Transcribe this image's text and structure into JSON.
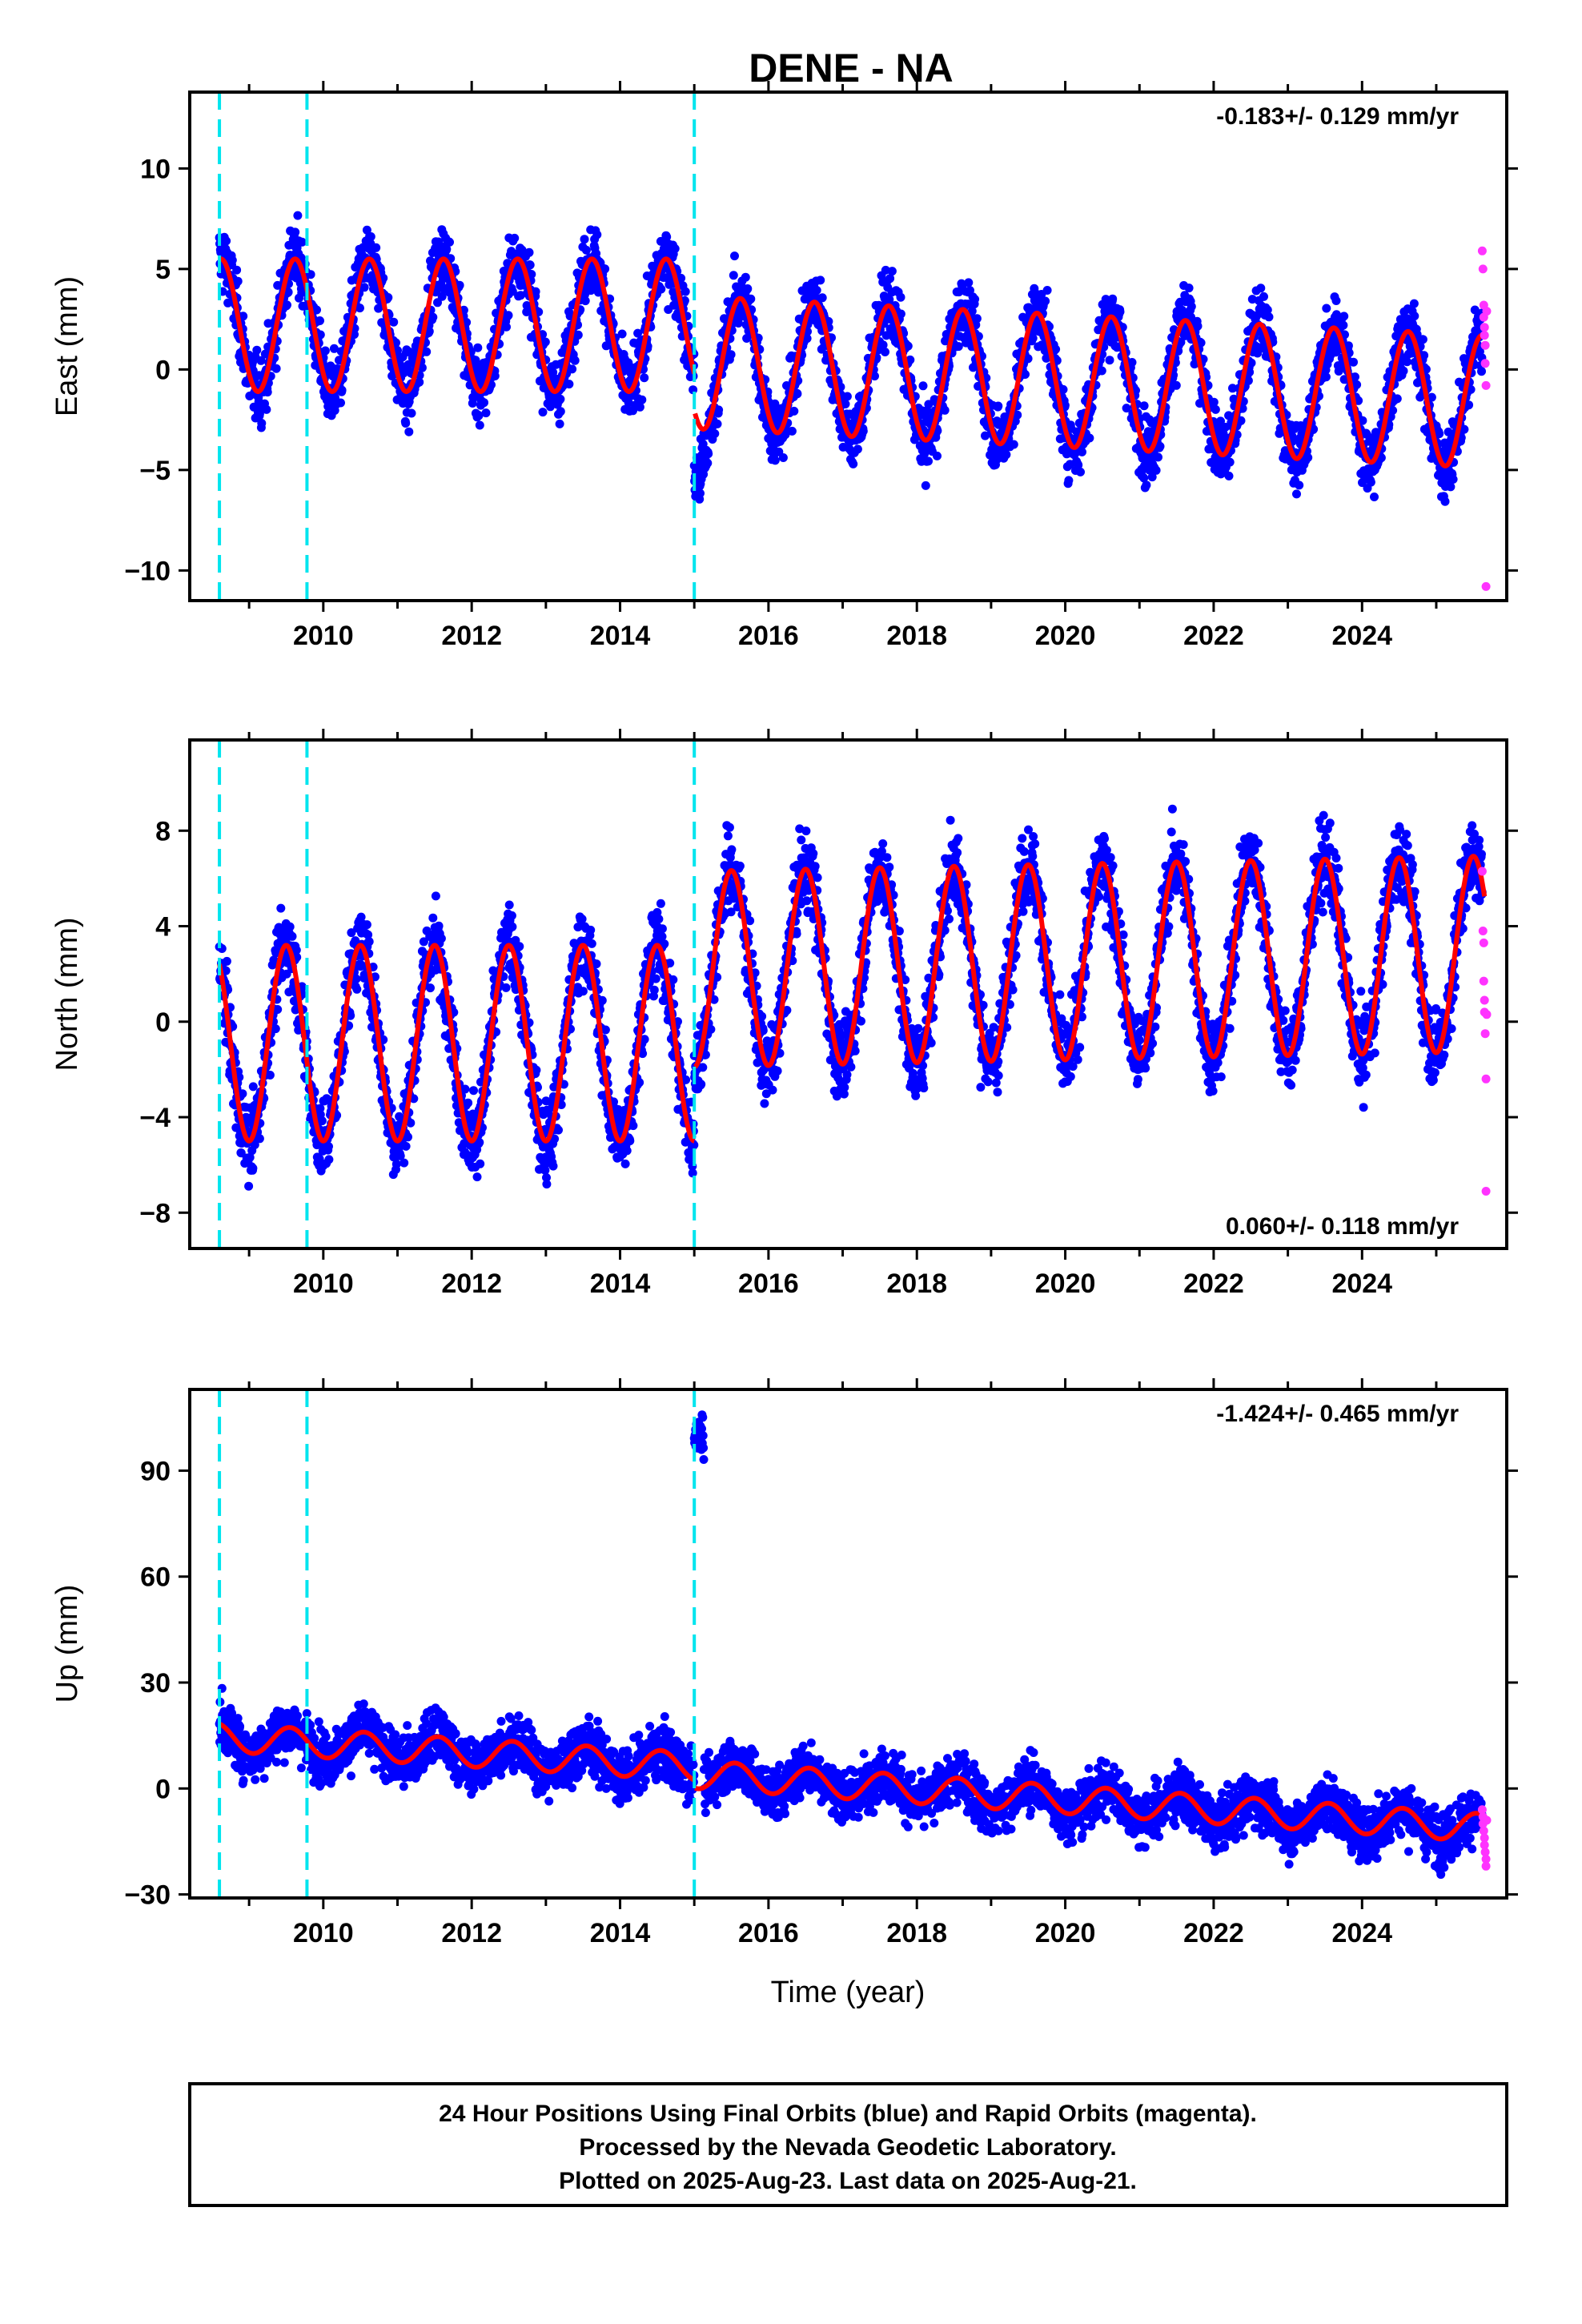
{
  "title": "DENE - NA",
  "xlabel": "Time (year)",
  "footer": [
    "24 Hour Positions Using Final Orbits (blue) and Rapid Orbits (magenta).",
    "Processed by the Nevada Geodetic Laboratory.",
    "Plotted on 2025-Aug-23. Last data on 2025-Aug-21."
  ],
  "colors": {
    "final_orbits": "#0000ff",
    "rapid_orbits": "#ff33ff",
    "model_fit": "#ff0000",
    "step_lines": "#00e5ee",
    "frame": "#000000"
  },
  "chart_data": [
    {
      "type": "scatter",
      "component": "east",
      "ylabel": "East (mm)",
      "rate_text": "-0.183+/- 0.129 mm/yr",
      "rate_position": "top-right",
      "xlim": [
        2008.2,
        2025.95
      ],
      "ylim": [
        -11.5,
        13.8
      ],
      "x_ticks": [
        2010,
        2012,
        2014,
        2016,
        2018,
        2020,
        2022,
        2024
      ],
      "y_ticks": [
        -10,
        -5,
        0,
        5,
        10
      ],
      "step_epochs": [
        2008.6,
        2009.78,
        2015.0
      ],
      "model_fit": {
        "segments": [
          {
            "t_start": 2008.6,
            "t_end": 2015.0,
            "offset": 2.2,
            "rate": 0.0,
            "amplitude": 3.3
          },
          {
            "t_start": 2015.0,
            "t_end": 2025.65,
            "offset": 0.35,
            "rate": -0.183,
            "amplitude": 3.3
          }
        ],
        "phase_year_fraction": 0.62
      },
      "rapid_points": {
        "x": [
          2025.62,
          2025.63,
          2025.64,
          2025.64,
          2025.65,
          2025.65,
          2025.66,
          2025.66,
          2025.67,
          2025.67,
          2025.68
        ],
        "y": [
          5.9,
          5.0,
          3.2,
          2.6,
          2.1,
          1.7,
          1.2,
          0.3,
          -0.8,
          -10.8,
          2.9
        ]
      }
    },
    {
      "type": "scatter",
      "component": "north",
      "ylabel": "North (mm)",
      "rate_text": "0.060+/- 0.118 mm/yr",
      "rate_position": "bottom-right",
      "xlim": [
        2008.2,
        2025.95
      ],
      "ylim": [
        -9.5,
        11.8
      ],
      "x_ticks": [
        2010,
        2012,
        2014,
        2016,
        2018,
        2020,
        2022,
        2024
      ],
      "y_ticks": [
        -8,
        -4,
        0,
        4,
        8
      ],
      "step_epochs": [
        2008.6,
        2009.78,
        2015.0
      ],
      "model_fit": {
        "segments": [
          {
            "t_start": 2008.6,
            "t_end": 2015.0,
            "offset": -0.9,
            "rate": 0.0,
            "amplitude": 4.1
          },
          {
            "t_start": 2015.0,
            "t_end": 2025.65,
            "offset": 2.2,
            "rate": 0.06,
            "amplitude": 4.1
          }
        ],
        "phase_year_fraction": 0.5
      },
      "rapid_points": {
        "x": [
          2025.62,
          2025.63,
          2025.64,
          2025.64,
          2025.65,
          2025.65,
          2025.66,
          2025.67,
          2025.67,
          2025.68
        ],
        "y": [
          6.3,
          3.8,
          3.3,
          1.7,
          0.9,
          0.4,
          -0.5,
          -2.4,
          -7.1,
          0.3
        ]
      }
    },
    {
      "type": "scatter",
      "component": "up",
      "ylabel": "Up (mm)",
      "rate_text": "-1.424+/- 0.465 mm/yr",
      "rate_position": "top-right",
      "xlim": [
        2008.2,
        2025.95
      ],
      "ylim": [
        -31,
        113
      ],
      "x_ticks": [
        2010,
        2012,
        2014,
        2016,
        2018,
        2020,
        2022,
        2024
      ],
      "y_ticks": [
        -30,
        0,
        30,
        60,
        90
      ],
      "step_epochs": [
        2008.6,
        2009.78,
        2015.0
      ],
      "model_fit": {
        "segments": [
          {
            "t_start": 2008.6,
            "t_end": 2015.0,
            "offset": 14.5,
            "rate": -1.3,
            "amplitude": 4.0
          },
          {
            "t_start": 2015.0,
            "t_end": 2025.65,
            "offset": 4.0,
            "rate": -1.424,
            "amplitude": 4.0
          }
        ],
        "phase_year_fraction": 0.55
      },
      "rapid_points": {
        "x": [
          2025.62,
          2025.63,
          2025.63,
          2025.64,
          2025.65,
          2025.65,
          2025.66,
          2025.67,
          2025.67,
          2025.68
        ],
        "y": [
          -6,
          -8,
          -10,
          -12,
          -14,
          -16,
          -18,
          -20,
          -22,
          -9
        ]
      }
    }
  ]
}
